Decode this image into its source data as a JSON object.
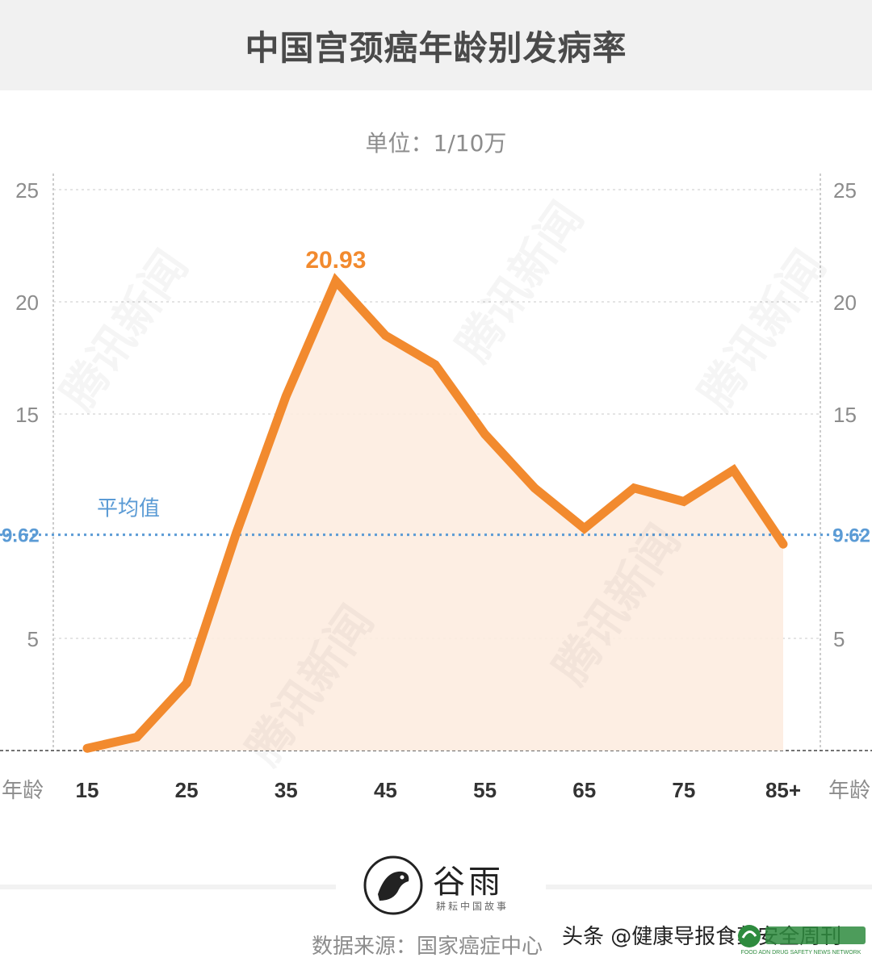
{
  "page": {
    "title": "中国宫颈癌年龄别发病率",
    "unit": "单位：1/10万",
    "source": "数据来源：国家癌症中心",
    "logo": {
      "name": "谷雨",
      "tagline": "耕耘中国故事"
    },
    "watermark": "腾讯新闻",
    "toutiao_credit": "头条 @健康导报食药安全周刊",
    "badge_text": "FOOD ADN DRUG SAFETY NEWS NETWORK"
  },
  "colors": {
    "line": "#f28a2e",
    "area": "#fdece0",
    "average": "#5b9bd5",
    "axis_text": "#8c8c8c",
    "tick_text": "#333333"
  },
  "chart_data": {
    "type": "line",
    "x_label": "年龄",
    "x": [
      15,
      20,
      25,
      30,
      35,
      40,
      45,
      50,
      55,
      60,
      65,
      70,
      75,
      80,
      85
    ],
    "x_tick_labels": [
      "15",
      "25",
      "35",
      "45",
      "55",
      "65",
      "75",
      "85+"
    ],
    "x_tick_values": [
      15,
      25,
      35,
      45,
      55,
      65,
      75,
      85
    ],
    "series": [
      {
        "values": [
          0.1,
          0.6,
          3.0,
          9.7,
          15.8,
          20.93,
          18.5,
          17.2,
          14.1,
          11.7,
          9.9,
          11.7,
          11.1,
          12.5,
          9.2
        ]
      }
    ],
    "y_ticks": [
      5,
      10,
      15,
      20,
      25
    ],
    "y_tick_labels": [
      "5",
      "",
      "15",
      "20",
      "25"
    ],
    "ylim": [
      0,
      25
    ],
    "xlim": [
      15,
      85
    ],
    "peak_label": "20.93",
    "peak_x": 40,
    "average": {
      "label": "平均值",
      "value": 9.62,
      "value_label": "9.62"
    },
    "grid": true,
    "area_fill": true,
    "right_axis": true
  }
}
